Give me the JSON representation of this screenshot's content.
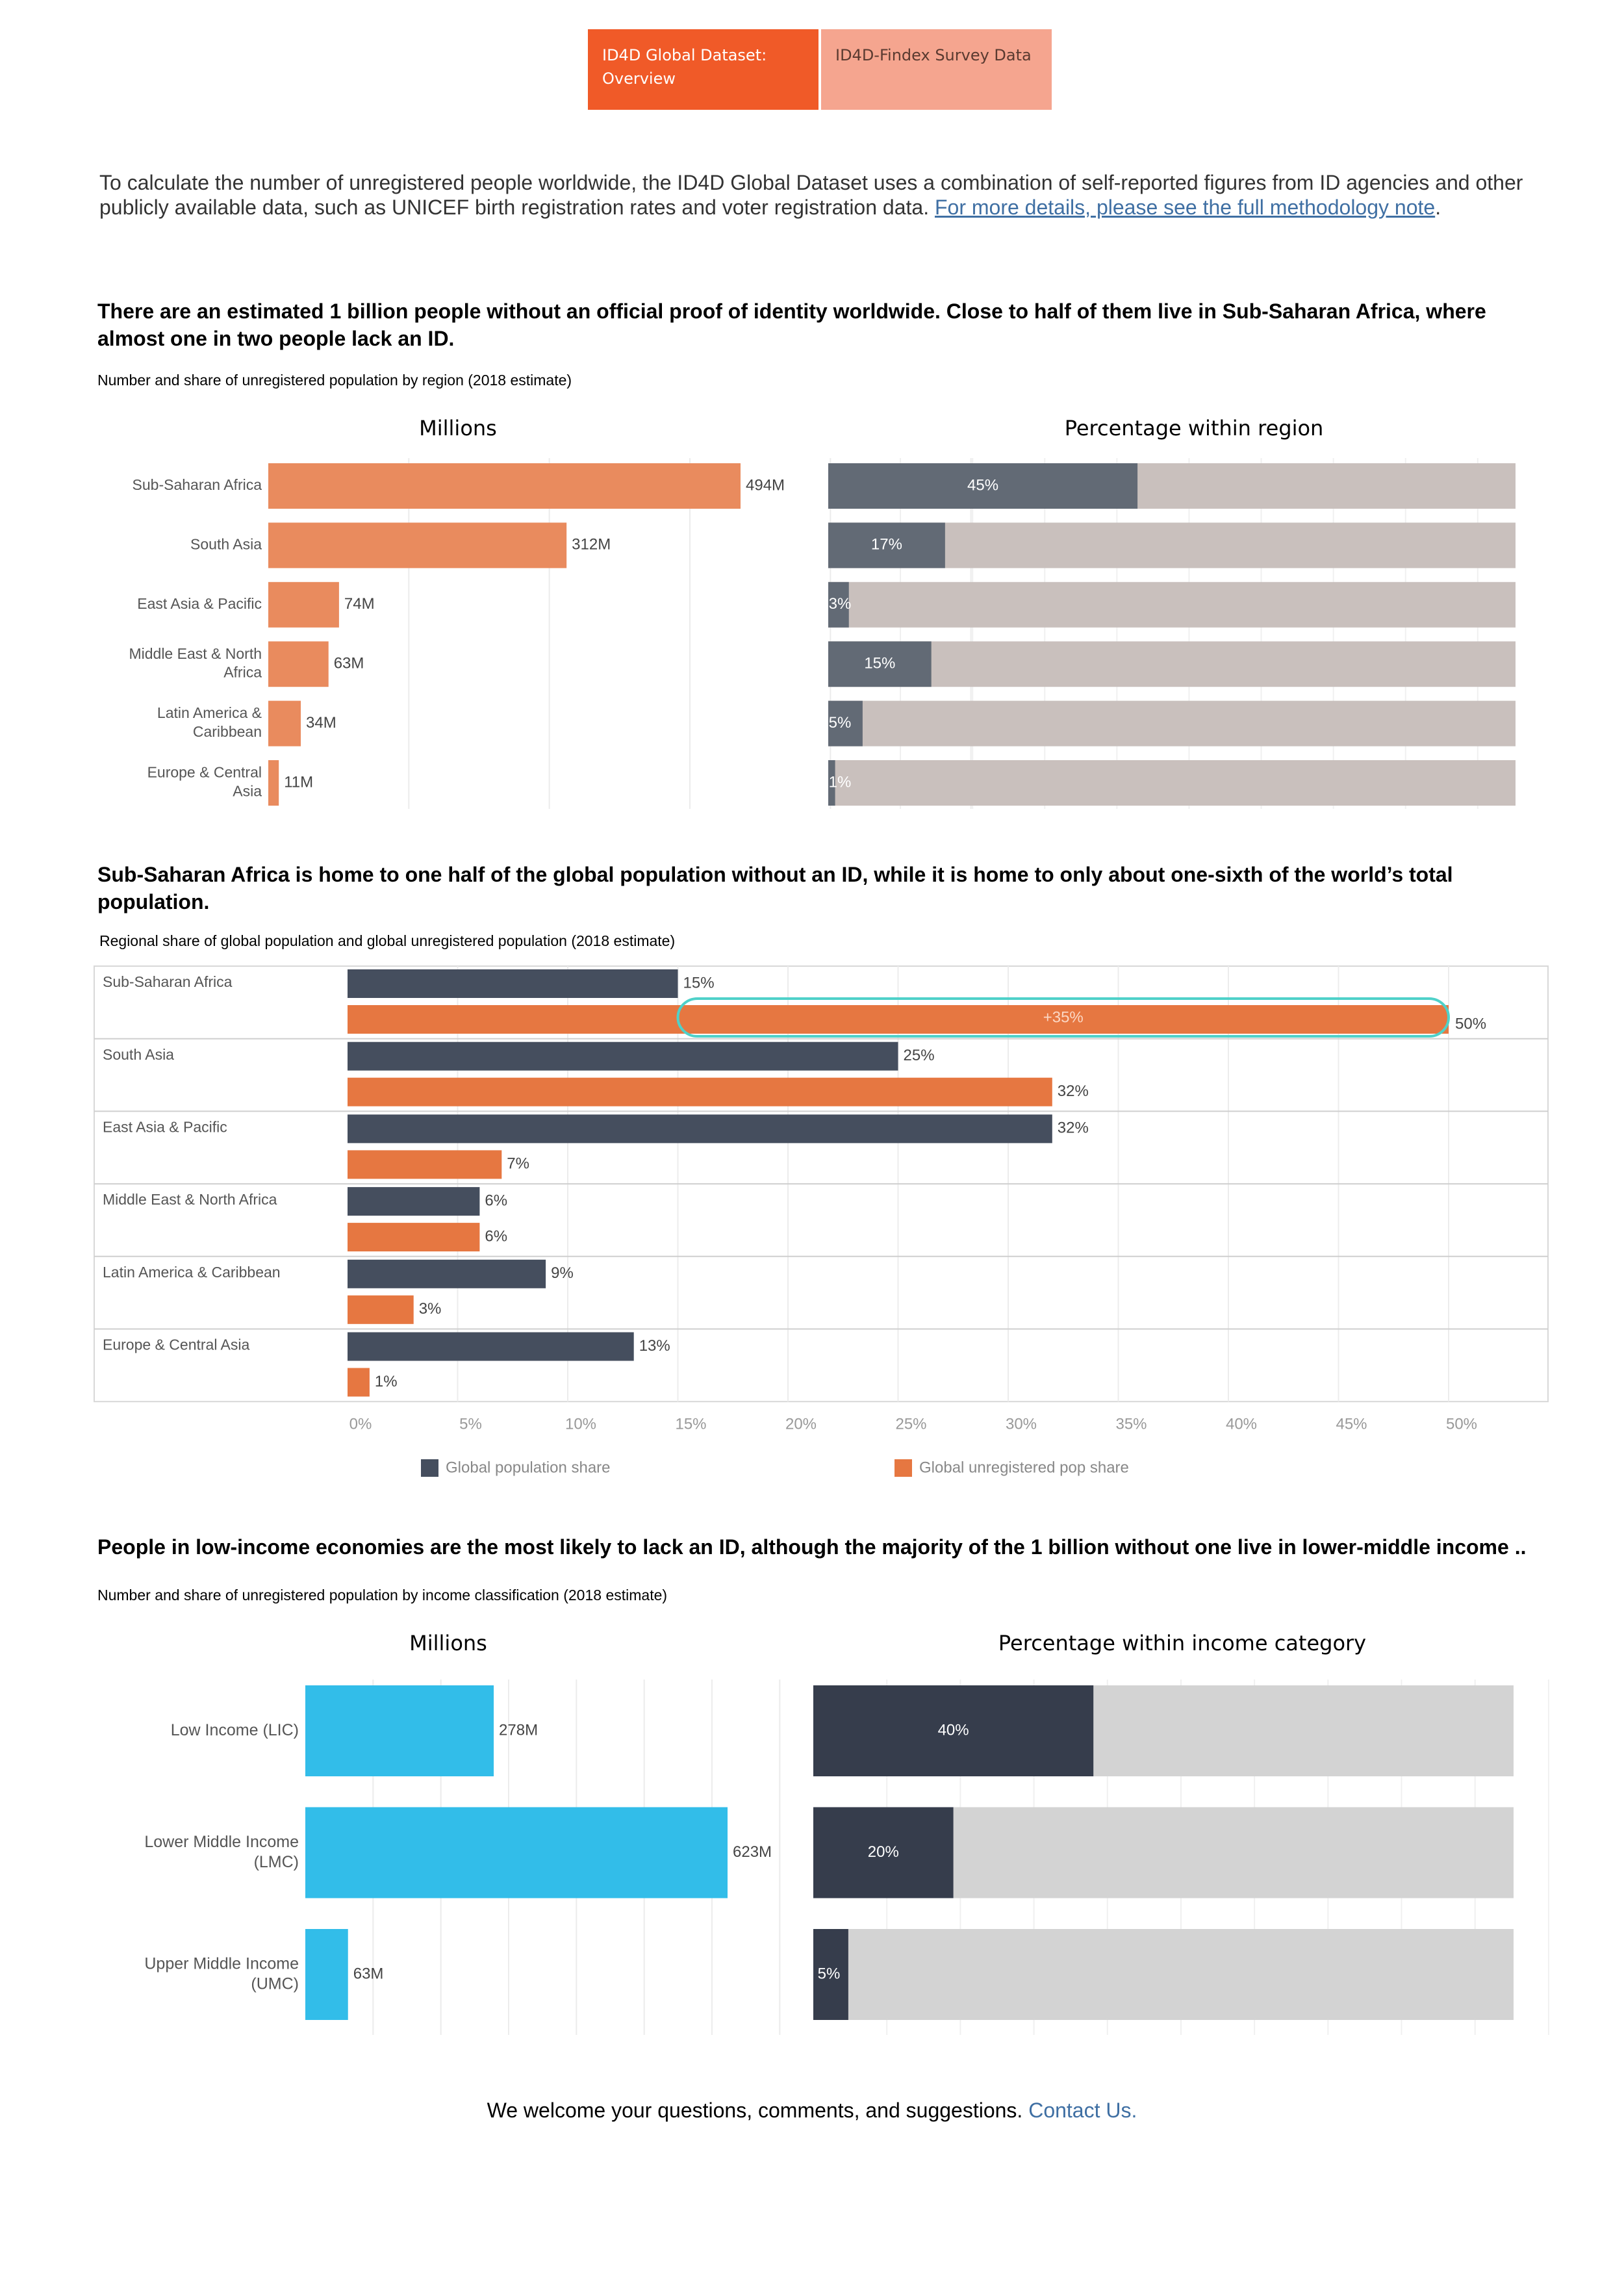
{
  "tabs": [
    {
      "label": "ID4D Global Dataset: Overview"
    },
    {
      "label": "ID4D-Findex Survey Data"
    }
  ],
  "intro": {
    "text": "To calculate the number of unregistered people worldwide, the ID4D Global Dataset uses a combination of self-reported figures from ID agencies and other publicly available data, such as  UNICEF birth registration rates and voter registration data. ",
    "link_text": "For more details, please see the full methodology note",
    "suffix": "."
  },
  "section1": {
    "headline": "There are an estimated 1 billion people without an official proof of identity worldwide. Close to half of them live in Sub-Saharan Africa, where almost one in two people lack an ID.",
    "subtitle": "Number and share of unregistered population by region (2018 estimate)",
    "left_title": "Millions",
    "right_title": "Percentage within region"
  },
  "section2": {
    "headline": "Sub-Saharan Africa is home to one half of the global population without an ID, while it is home to only about one-sixth of the world’s total population.",
    "subtitle": "Regional share of global population and global unregistered population (2018 estimate)",
    "annotation": "+35%"
  },
  "section3": {
    "headline": "People in low-income economies are the most likely to lack an ID, although the majority of the 1 billion without one live in lower-middle income ..",
    "subtitle": "Number and share of unregistered population by income classification (2018 estimate)",
    "left_title": "Millions",
    "right_title": "Percentage within income category"
  },
  "footer": {
    "text": "We welcome your questions, comments, and suggestions. ",
    "link_text": "Contact Us."
  },
  "colors": {
    "tab_active": "#f05a28",
    "tab_inactive": "#f5a58f",
    "region_millions_bar": "#e98b5e",
    "region_pct_bar": "#626a75",
    "pct_background": "#c9c0bd",
    "global_pop": "#454e5e",
    "global_unreg": "#e67741",
    "income_millions_bar": "#32bde9",
    "income_pct_bar": "#363d4c",
    "income_pct_background": "#d3d3d3",
    "annotation_outline": "#4fd1c9",
    "link": "#3f6fa3"
  },
  "chart_data": [
    {
      "type": "bar",
      "title": "Millions",
      "orientation": "horizontal",
      "categories": [
        "Sub-Saharan Africa",
        "South Asia",
        "East Asia & Pacific",
        "Middle East & North Africa",
        "Latin America & Caribbean",
        "Europe & Central Asia"
      ],
      "values": [
        494,
        312,
        74,
        63,
        34,
        11
      ],
      "labels": [
        "494M",
        "312M",
        "74M",
        "63M",
        "34M",
        "11M"
      ],
      "xlim": [
        0,
        550
      ]
    },
    {
      "type": "bar",
      "title": "Percentage within region",
      "orientation": "horizontal",
      "stacked_to": 100,
      "categories": [
        "Sub-Saharan Africa",
        "South Asia",
        "East Asia & Pacific",
        "Middle East & North Africa",
        "Latin America & Caribbean",
        "Europe & Central Asia"
      ],
      "values": [
        45,
        17,
        3,
        15,
        5,
        1
      ],
      "labels": [
        "45%",
        "17%",
        "3%",
        "15%",
        "5%",
        "1%"
      ],
      "xlim": [
        0,
        100
      ]
    },
    {
      "type": "bar",
      "orientation": "horizontal",
      "categories": [
        "Sub-Saharan Africa",
        "South Asia",
        "East Asia & Pacific",
        "Middle East & North Africa",
        "Latin America & Caribbean",
        "Europe & Central Asia"
      ],
      "series": [
        {
          "name": "Global population share",
          "values": [
            15,
            25,
            32,
            6,
            9,
            13
          ],
          "labels": [
            "15%",
            "25%",
            "32%",
            "6%",
            "9%",
            "13%"
          ]
        },
        {
          "name": "Global unregistered pop share",
          "values": [
            50,
            32,
            7,
            6,
            3,
            1
          ],
          "labels": [
            "50%",
            "32%",
            "7%",
            "6%",
            "3%",
            "1%"
          ]
        }
      ],
      "xticks": [
        "0%",
        "5%",
        "10%",
        "15%",
        "20%",
        "25%",
        "30%",
        "35%",
        "40%",
        "45%",
        "50%"
      ],
      "xlim": [
        0,
        50
      ],
      "legend": "bottom",
      "annotation": {
        "category": "Sub-Saharan Africa",
        "text": "+35%"
      }
    },
    {
      "type": "bar",
      "title": "Millions",
      "orientation": "horizontal",
      "categories": [
        "Low Income (LIC)",
        "Lower Middle Income (LMC)",
        "Upper Middle Income (UMC)"
      ],
      "values": [
        278,
        623,
        63
      ],
      "labels": [
        "278M",
        "623M",
        "63M"
      ],
      "xlim": [
        0,
        700
      ]
    },
    {
      "type": "bar",
      "title": "Percentage within income category",
      "orientation": "horizontal",
      "stacked_to": 100,
      "categories": [
        "Low Income (LIC)",
        "Lower Middle Income (LMC)",
        "Upper Middle Income (UMC)"
      ],
      "values": [
        40,
        20,
        5
      ],
      "labels": [
        "40%",
        "20%",
        "5%"
      ],
      "xlim": [
        0,
        100
      ]
    }
  ]
}
